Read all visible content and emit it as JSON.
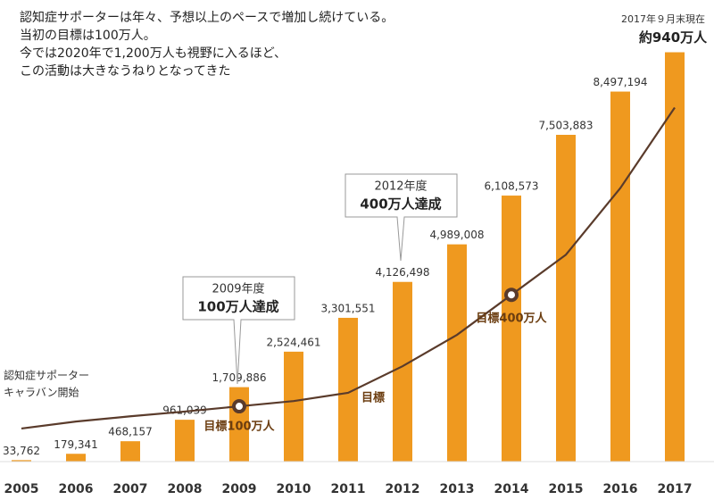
{
  "chart_data": {
    "type": "bar",
    "title": [
      "認知症サポーターは年々、予想以上のペースで増加し続けている。",
      "当初の目標は100万人。",
      "今では2020年で1,200万人も視野に入るほど、",
      "この活動は大きなうねりとなってきた"
    ],
    "categories": [
      "2005",
      "2006",
      "2007",
      "2008",
      "2009",
      "2010",
      "2011",
      "2012",
      "2013",
      "2014",
      "2015",
      "2016",
      "2017"
    ],
    "values": [
      33762,
      179341,
      468157,
      961039,
      1709886,
      2524461,
      3301551,
      4126498,
      4989008,
      6108573,
      7503883,
      8497194,
      9400000
    ],
    "value_labels": [
      "33,762",
      "179,341",
      "468,157",
      "961,039",
      "1,709,886",
      "2,524,461",
      "3,301,551",
      "4,126,498",
      "4,989,008",
      "6,108,573",
      "7,503,883",
      "8,497,194",
      "約940万人"
    ],
    "color": "#ef991f",
    "ylim": [
      0,
      10600000
    ],
    "line": {
      "name": "目標",
      "color": "#5a3b2b",
      "values": [
        760000,
        920000,
        1040000,
        1150000,
        1270000,
        1390000,
        1580000,
        2190000,
        2910000,
        3830000,
        4750000,
        6280000,
        8130000
      ]
    },
    "annotations": {
      "start": [
        "認知症サポーター",
        "キャラバン開始"
      ],
      "callout_2009": [
        "2009年度",
        "100万人達成"
      ],
      "callout_2012": [
        "2012年度",
        "400万人達成"
      ],
      "goal_2009": "目標100万人",
      "goal_2014": "目標400万人",
      "as_of": "2017年９月末現在"
    }
  }
}
